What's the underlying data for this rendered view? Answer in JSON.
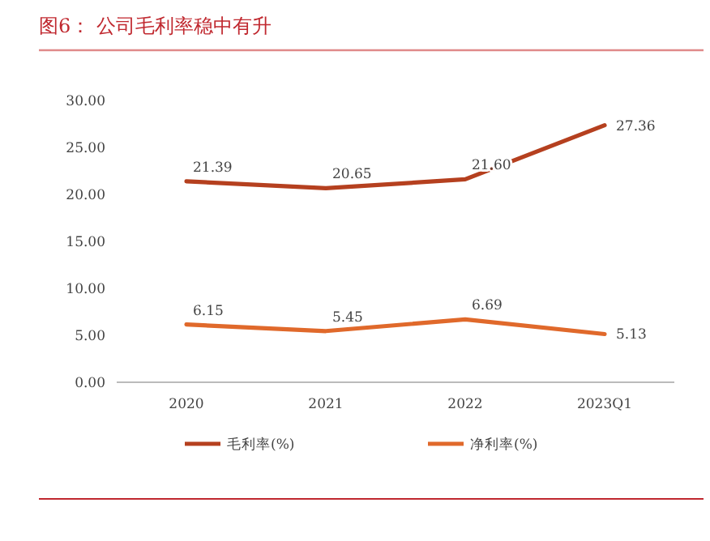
{
  "chart_data": {
    "type": "line",
    "title": "图6：  公司毛利率稳中有升",
    "categories": [
      "2020",
      "2021",
      "2022",
      "2023Q1"
    ],
    "series": [
      {
        "name": "毛利率(%)",
        "color": "#b5401f",
        "values": [
          21.39,
          20.65,
          21.6,
          27.36
        ],
        "value_labels": [
          "21.39",
          "20.65",
          "21.60",
          "27.36"
        ]
      },
      {
        "name": "净利率(%)",
        "color": "#e0692b",
        "values": [
          6.15,
          5.45,
          6.69,
          5.13
        ],
        "value_labels": [
          "6.15",
          "5.45",
          "6.69",
          "5.13"
        ]
      }
    ],
    "ylim": [
      0,
      30
    ],
    "yticks": [
      {
        "value": 0,
        "label": "0.00"
      },
      {
        "value": 5,
        "label": "5.00"
      },
      {
        "value": 10,
        "label": "10.00"
      },
      {
        "value": 15,
        "label": "15.00"
      },
      {
        "value": 20,
        "label": "20.00"
      },
      {
        "value": 25,
        "label": "25.00"
      },
      {
        "value": 30,
        "label": "30.00"
      }
    ],
    "legend": "bottom",
    "grid": false,
    "marker": "none",
    "line_style": "solid"
  }
}
